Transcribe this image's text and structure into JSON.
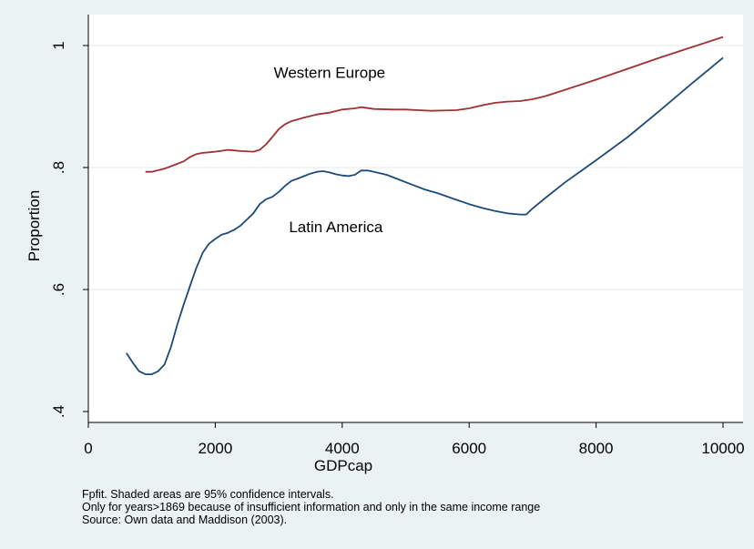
{
  "chart_data": {
    "type": "line",
    "title": "",
    "xlabel": "GDPcap",
    "ylabel": "Proportion",
    "xlim": [
      0,
      10000
    ],
    "ylim": [
      0.4,
      1.0
    ],
    "x_ticks": [
      0,
      2000,
      4000,
      6000,
      8000,
      10000
    ],
    "y_ticks": [
      0.4,
      0.6,
      0.8,
      1.0
    ],
    "x_tick_labels": [
      "0",
      "2000",
      "4000",
      "6000",
      "8000",
      "10000"
    ],
    "y_tick_labels": [
      ".4",
      ".6",
      ".8",
      "1"
    ],
    "grid": "horizontal",
    "legend": "none",
    "series": [
      {
        "name": "Western Europe",
        "color": "#a03034",
        "points": [
          [
            900,
            0.793
          ],
          [
            1000,
            0.793
          ],
          [
            1200,
            0.798
          ],
          [
            1400,
            0.806
          ],
          [
            1500,
            0.81
          ],
          [
            1600,
            0.817
          ],
          [
            1700,
            0.822
          ],
          [
            1800,
            0.824
          ],
          [
            1900,
            0.825
          ],
          [
            2000,
            0.826
          ],
          [
            2200,
            0.829
          ],
          [
            2400,
            0.827
          ],
          [
            2600,
            0.826
          ],
          [
            2700,
            0.829
          ],
          [
            2800,
            0.838
          ],
          [
            2900,
            0.85
          ],
          [
            3000,
            0.863
          ],
          [
            3100,
            0.871
          ],
          [
            3200,
            0.876
          ],
          [
            3400,
            0.882
          ],
          [
            3600,
            0.887
          ],
          [
            3800,
            0.89
          ],
          [
            4000,
            0.895
          ],
          [
            4200,
            0.897
          ],
          [
            4300,
            0.899
          ],
          [
            4500,
            0.896
          ],
          [
            4800,
            0.895
          ],
          [
            5000,
            0.895
          ],
          [
            5200,
            0.894
          ],
          [
            5400,
            0.893
          ],
          [
            5800,
            0.894
          ],
          [
            6000,
            0.897
          ],
          [
            6200,
            0.902
          ],
          [
            6400,
            0.906
          ],
          [
            6600,
            0.908
          ],
          [
            6800,
            0.909
          ],
          [
            7000,
            0.912
          ],
          [
            7200,
            0.917
          ],
          [
            7500,
            0.927
          ],
          [
            8000,
            0.944
          ],
          [
            8500,
            0.962
          ],
          [
            9000,
            0.98
          ],
          [
            9500,
            0.997
          ],
          [
            10000,
            1.014
          ]
        ]
      },
      {
        "name": "Latin America",
        "color": "#1d4a78",
        "points": [
          [
            600,
            0.496
          ],
          [
            700,
            0.48
          ],
          [
            800,
            0.466
          ],
          [
            900,
            0.461
          ],
          [
            1000,
            0.461
          ],
          [
            1100,
            0.466
          ],
          [
            1200,
            0.477
          ],
          [
            1300,
            0.505
          ],
          [
            1400,
            0.542
          ],
          [
            1500,
            0.575
          ],
          [
            1600,
            0.605
          ],
          [
            1700,
            0.635
          ],
          [
            1800,
            0.66
          ],
          [
            1900,
            0.675
          ],
          [
            2000,
            0.683
          ],
          [
            2100,
            0.69
          ],
          [
            2200,
            0.693
          ],
          [
            2300,
            0.698
          ],
          [
            2400,
            0.705
          ],
          [
            2500,
            0.715
          ],
          [
            2600,
            0.725
          ],
          [
            2700,
            0.74
          ],
          [
            2800,
            0.748
          ],
          [
            2900,
            0.752
          ],
          [
            3000,
            0.76
          ],
          [
            3100,
            0.77
          ],
          [
            3200,
            0.778
          ],
          [
            3300,
            0.782
          ],
          [
            3400,
            0.786
          ],
          [
            3500,
            0.79
          ],
          [
            3600,
            0.793
          ],
          [
            3700,
            0.794
          ],
          [
            3800,
            0.792
          ],
          [
            3900,
            0.789
          ],
          [
            4000,
            0.787
          ],
          [
            4100,
            0.786
          ],
          [
            4200,
            0.788
          ],
          [
            4300,
            0.795
          ],
          [
            4400,
            0.795
          ],
          [
            4500,
            0.793
          ],
          [
            4700,
            0.788
          ],
          [
            4900,
            0.78
          ],
          [
            5100,
            0.772
          ],
          [
            5300,
            0.764
          ],
          [
            5500,
            0.758
          ],
          [
            5800,
            0.747
          ],
          [
            6000,
            0.74
          ],
          [
            6200,
            0.734
          ],
          [
            6400,
            0.729
          ],
          [
            6600,
            0.725
          ],
          [
            6800,
            0.723
          ],
          [
            6900,
            0.723
          ],
          [
            7000,
            0.733
          ],
          [
            7200,
            0.75
          ],
          [
            7500,
            0.775
          ],
          [
            8000,
            0.812
          ],
          [
            8500,
            0.85
          ],
          [
            9000,
            0.893
          ],
          [
            9500,
            0.937
          ],
          [
            10000,
            0.98
          ]
        ]
      }
    ],
    "annotations": [
      {
        "text": "Western Europe",
        "x": 3800,
        "y": 0.947
      },
      {
        "text": "Latin America",
        "x": 3900,
        "y": 0.694
      }
    ],
    "notes": [
      "Fpfit. Shaded areas are 95% confidence intervals.",
      "Only for years>1869 because of insufficient information and only in the same income range",
      "Source: Own data and Maddison (2003)."
    ]
  }
}
